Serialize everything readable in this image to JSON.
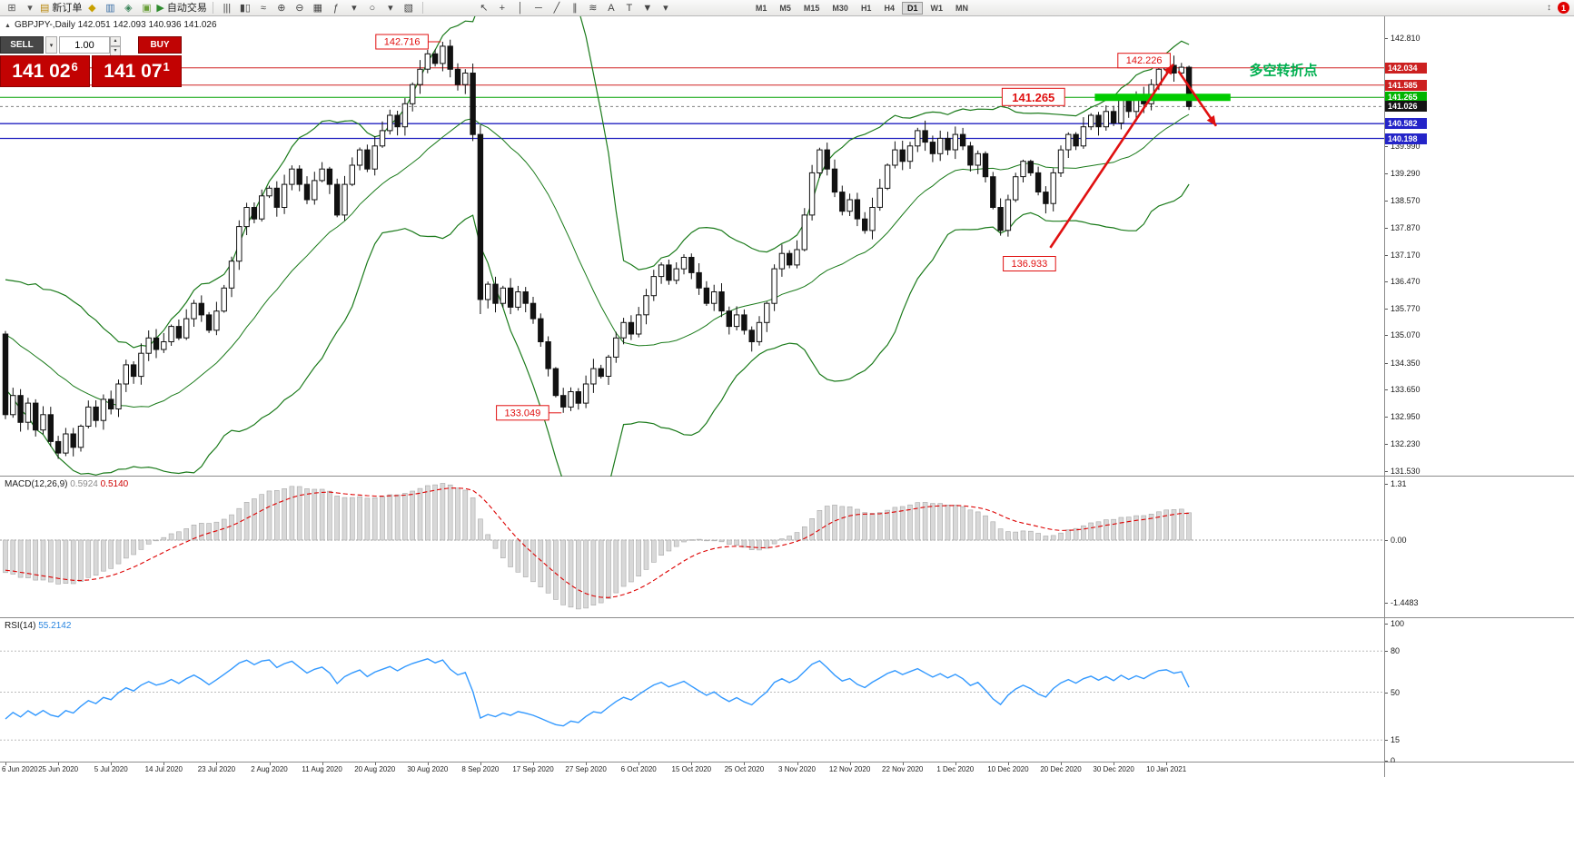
{
  "toolbar": {
    "left_buttons": [
      {
        "name": "new-chart",
        "glyph": "⊞",
        "color": "#555555"
      },
      {
        "name": "chart-type-dropdown",
        "glyph": "▾",
        "color": "#555555"
      },
      {
        "name": "new-order",
        "glyph": "▤",
        "color": "#b8860b",
        "label": "新订单"
      },
      {
        "name": "alerts",
        "glyph": "◆",
        "color": "#c8a000"
      },
      {
        "name": "market-watch",
        "glyph": "▥",
        "color": "#3a6ea5"
      },
      {
        "name": "navigator",
        "glyph": "◈",
        "color": "#3a845a"
      },
      {
        "name": "terminal",
        "glyph": "▣",
        "color": "#6a9f3a"
      },
      {
        "name": "auto-trading",
        "glyph": "▶",
        "color": "#2e8b2e",
        "label": "自动交易"
      }
    ],
    "chart_tools": [
      {
        "name": "bar-chart",
        "glyph": "|||"
      },
      {
        "name": "candlestick-chart",
        "glyph": "▮▯"
      },
      {
        "name": "line-chart",
        "glyph": "≈"
      },
      {
        "name": "zoom-in",
        "glyph": "⊕"
      },
      {
        "name": "zoom-out",
        "glyph": "⊖"
      },
      {
        "name": "tile-windows",
        "glyph": "▦"
      },
      {
        "name": "indicators",
        "glyph": "ƒ"
      },
      {
        "name": "indicators-dropdown",
        "glyph": "▾"
      },
      {
        "name": "periods",
        "glyph": "○"
      },
      {
        "name": "periods-dropdown",
        "glyph": "▾"
      },
      {
        "name": "templates",
        "glyph": "▧"
      }
    ],
    "draw_tools": [
      {
        "name": "cursor",
        "glyph": "↖"
      },
      {
        "name": "crosshair",
        "glyph": "+"
      },
      {
        "name": "vertical-line",
        "glyph": "│"
      },
      {
        "name": "horizontal-line",
        "glyph": "─"
      },
      {
        "name": "trendline",
        "glyph": "╱"
      },
      {
        "name": "channel",
        "glyph": "∥"
      },
      {
        "name": "fibonacci",
        "glyph": "≋"
      },
      {
        "name": "text",
        "glyph": "A"
      },
      {
        "name": "text-label",
        "glyph": "T"
      },
      {
        "name": "arrows-tool",
        "glyph": "▼"
      },
      {
        "name": "arrows-dropdown",
        "glyph": "▾"
      }
    ],
    "timeframes": [
      "M1",
      "M5",
      "M15",
      "M30",
      "H1",
      "H4",
      "D1",
      "W1",
      "MN"
    ],
    "active_timeframe": "D1",
    "overflow_glyph": "↕",
    "badge": "1"
  },
  "trade_panel": {
    "sell_label": "SELL",
    "buy_label": "BUY",
    "volume": "1.00",
    "sell_price_main": "141 02",
    "sell_price_pip": "6",
    "buy_price_main": "141 07",
    "buy_price_pip": "1"
  },
  "symbol_header": {
    "collapse_glyph": "▲",
    "text": "GBPJPY-,Daily  142.051 142.093 140.936 141.026"
  },
  "chart_data": {
    "type": "candlestick",
    "symbol": "GBPJPY-",
    "timeframe": "Daily",
    "last_ohlc": {
      "open": 142.051,
      "high": 142.093,
      "low": 140.936,
      "close": 141.026
    },
    "price_axis_ticks": [
      "142.810",
      "139.990",
      "139.290",
      "138.570",
      "137.870",
      "137.170",
      "136.470",
      "135.770",
      "135.070",
      "134.350",
      "133.650",
      "132.950",
      "132.230",
      "131.530"
    ],
    "price_badges": [
      {
        "value": "142.034",
        "price": 142.034,
        "color": "#cc2020"
      },
      {
        "value": "141.585",
        "price": 141.585,
        "color": "#cc2020"
      },
      {
        "value": "141.265",
        "price": 141.265,
        "color": "#00b400"
      },
      {
        "value": "141.026",
        "price": 141.026,
        "color": "#141414"
      },
      {
        "value": "140.582",
        "price": 140.582,
        "color": "#2424c8"
      },
      {
        "value": "140.198",
        "price": 140.198,
        "color": "#2424c8"
      }
    ],
    "hlines": [
      {
        "price": 142.034,
        "color": "#d02020",
        "width": 1,
        "dashed": false
      },
      {
        "price": 141.585,
        "color": "#d02020",
        "width": 1,
        "dashed": false
      },
      {
        "price": 141.265,
        "color": "#00a000",
        "width": 1,
        "dashed": false
      },
      {
        "price": 140.582,
        "color": "#2020c0",
        "width": 1.3,
        "dashed": false
      },
      {
        "price": 140.198,
        "color": "#2020c0",
        "width": 1.3,
        "dashed": false
      },
      {
        "price": 141.026,
        "color": "#808080",
        "width": 1,
        "dashed": true
      }
    ],
    "green_segment": {
      "price": 141.265,
      "from_bar": 144.5,
      "to_bar": 162.5,
      "color": "#00cc00",
      "width": 8
    },
    "price_labels": [
      {
        "text": "142.716",
        "price": 142.716,
        "bar": 58,
        "leader": true,
        "big": false
      },
      {
        "text": "142.226",
        "price": 142.226,
        "bar": 154.5,
        "leader": false,
        "big": false
      },
      {
        "text": "141.265",
        "price": 141.265,
        "bar": 140.5,
        "leader": false,
        "big": true
      },
      {
        "text": "136.933",
        "price": 136.933,
        "bar": 139.3,
        "leader": false,
        "big": false
      },
      {
        "text": "133.049",
        "price": 133.049,
        "bar": 74,
        "leader": true,
        "big": false
      }
    ],
    "arrows": [
      {
        "from_bar": 138.6,
        "from_price": 137.35,
        "to_bar": 154.9,
        "to_price": 142.13,
        "color": "#e01010",
        "width": 2.6
      },
      {
        "from_bar": 155.6,
        "from_price": 141.95,
        "to_bar": 160.6,
        "to_price": 140.52,
        "color": "#e01010",
        "width": 2.6
      }
    ],
    "note": {
      "text": "多空转折点",
      "bar": 165,
      "price": 141.85,
      "color": "#00b050"
    },
    "bollinger": {
      "period": 20,
      "deviation": 2,
      "color": "#1a7a1a"
    },
    "history_closes": [
      138.2,
      137.8,
      137.5,
      137.9,
      137.4,
      137.0,
      137.3,
      136.8,
      136.5,
      136.9,
      136.4,
      136.0,
      136.3,
      135.8,
      135.5,
      135.9,
      135.4,
      135.6,
      135.1,
      135.4,
      134.9,
      135.2,
      134.7,
      135.0,
      134.6,
      134.9,
      134.4,
      134.7,
      134.3,
      135.1
    ],
    "closes": [
      133.0,
      133.5,
      132.8,
      133.3,
      132.6,
      133.0,
      132.3,
      132.0,
      132.5,
      132.15,
      132.7,
      133.2,
      132.85,
      133.4,
      133.15,
      133.8,
      134.3,
      134.0,
      134.6,
      135.0,
      134.7,
      134.9,
      135.3,
      135.0,
      135.5,
      135.9,
      135.6,
      135.2,
      135.7,
      136.3,
      137.0,
      137.9,
      138.4,
      138.1,
      138.7,
      138.9,
      138.4,
      139.0,
      139.4,
      139.0,
      138.6,
      139.1,
      139.4,
      139.0,
      138.2,
      139.0,
      139.5,
      139.9,
      139.4,
      140.0,
      140.4,
      140.8,
      140.5,
      141.1,
      141.6,
      142.0,
      142.4,
      142.15,
      142.6,
      142.0,
      141.6,
      141.9,
      140.3,
      136.0,
      136.4,
      135.9,
      136.3,
      135.8,
      136.2,
      135.9,
      135.5,
      134.9,
      134.2,
      133.5,
      133.2,
      133.6,
      133.3,
      133.8,
      134.2,
      134.0,
      134.5,
      135.0,
      135.4,
      135.1,
      135.6,
      136.1,
      136.6,
      136.9,
      136.5,
      136.8,
      137.1,
      136.7,
      136.3,
      135.9,
      136.2,
      135.7,
      135.3,
      135.6,
      135.2,
      134.9,
      135.4,
      135.9,
      136.8,
      137.2,
      136.9,
      137.3,
      138.2,
      139.3,
      139.9,
      139.4,
      138.8,
      138.3,
      138.6,
      138.1,
      137.8,
      138.4,
      138.9,
      139.5,
      139.9,
      139.6,
      140.0,
      140.4,
      140.1,
      139.8,
      140.2,
      139.9,
      140.3,
      140.0,
      139.5,
      139.8,
      139.2,
      138.4,
      137.8,
      138.6,
      139.2,
      139.6,
      139.3,
      138.8,
      138.5,
      139.3,
      139.9,
      140.3,
      140.0,
      140.5,
      140.8,
      140.5,
      140.9,
      140.6,
      141.2,
      140.9,
      141.3,
      141.1,
      141.6,
      142.0,
      142.1,
      141.9,
      142.05,
      141.026
    ],
    "overrides": {
      "7": {
        "low": 131.85
      },
      "58": {
        "high": 142.716
      },
      "63": {
        "low": 135.62
      },
      "74": {
        "low": 133.049
      },
      "154": {
        "high": 142.226
      },
      "157": {
        "high": 142.093,
        "low": 140.936
      }
    },
    "macd": {
      "label": "MACD(12,26,9)",
      "value_main": "0.5924",
      "value_signal": "0.5140",
      "fast": 12,
      "slow": 26,
      "signal": 9,
      "hist_color": "#d8d8d8",
      "signal_color": "#dd0000",
      "axis": [
        {
          "text": "1.31",
          "value": 1.31
        },
        {
          "text": "0.00",
          "value": 0
        },
        {
          "text": "-1.4483",
          "value": -1.4483
        }
      ]
    },
    "rsi": {
      "label": "RSI(14)",
      "value": "55.2142",
      "period": 14,
      "color": "#3399ff",
      "axis": [
        {
          "text": "100",
          "value": 100
        },
        {
          "text": "80",
          "value": 80
        },
        {
          "text": "50",
          "value": 50
        },
        {
          "text": "15",
          "value": 15
        },
        {
          "text": "0",
          "value": 0
        }
      ],
      "levels": [
        80,
        50,
        15
      ]
    },
    "dates": [
      "6 Jun 2020",
      "25 Jun 2020",
      "5 Jul 2020",
      "14 Jul 2020",
      "23 Jul 2020",
      "2 Aug 2020",
      "11 Aug 2020",
      "20 Aug 2020",
      "30 Aug 2020",
      "8 Sep 2020",
      "17 Sep 2020",
      "27 Sep 2020",
      "6 Oct 2020",
      "15 Oct 2020",
      "25 Oct 2020",
      "3 Nov 2020",
      "12 Nov 2020",
      "22 Nov 2020",
      "1 Dec 2020",
      "10 Dec 2020",
      "20 Dec 2020",
      "30 Dec 2020",
      "10 Jan 2021"
    ],
    "bars_per_label": 7
  }
}
